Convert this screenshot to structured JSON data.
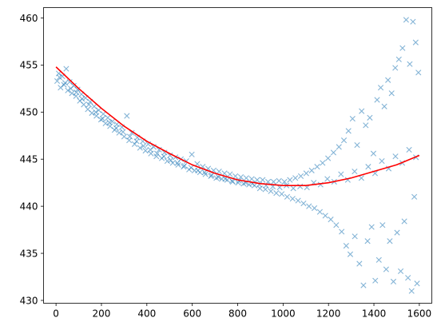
{
  "chart_data": {
    "type": "scatter",
    "title": "",
    "xlabel": "",
    "ylabel": "",
    "xlim": [
      -55,
      1655
    ],
    "ylim": [
      429.7,
      461.1
    ],
    "xticks": [
      0,
      200,
      400,
      600,
      800,
      1000,
      1200,
      1400,
      1600
    ],
    "yticks": [
      430,
      435,
      440,
      445,
      450,
      455,
      460
    ],
    "grid": false,
    "legend": "none",
    "series": [
      {
        "kind": "scatter",
        "marker": "x",
        "color": "#1f77b4",
        "alpha": 0.55,
        "points": [
          [
            5,
            453.3
          ],
          [
            12,
            454.1
          ],
          [
            20,
            452.6
          ],
          [
            28,
            453.8
          ],
          [
            35,
            452.9
          ],
          [
            45,
            454.6
          ],
          [
            52,
            452.3
          ],
          [
            60,
            453.2
          ],
          [
            70,
            452.0
          ],
          [
            78,
            452.8
          ],
          [
            88,
            451.7
          ],
          [
            95,
            452.4
          ],
          [
            105,
            451.2
          ],
          [
            112,
            451.9
          ],
          [
            122,
            450.8
          ],
          [
            130,
            451.5
          ],
          [
            140,
            450.3
          ],
          [
            150,
            451.1
          ],
          [
            158,
            449.9
          ],
          [
            168,
            450.6
          ],
          [
            178,
            449.6
          ],
          [
            188,
            450.2
          ],
          [
            198,
            449.2
          ],
          [
            208,
            449.8
          ],
          [
            218,
            448.8
          ],
          [
            228,
            449.4
          ],
          [
            238,
            448.5
          ],
          [
            248,
            449.0
          ],
          [
            258,
            448.1
          ],
          [
            268,
            448.7
          ],
          [
            278,
            447.8
          ],
          [
            290,
            448.4
          ],
          [
            300,
            447.4
          ],
          [
            312,
            449.6
          ],
          [
            322,
            447.0
          ],
          [
            334,
            447.8
          ],
          [
            346,
            446.6
          ],
          [
            358,
            447.3
          ],
          [
            370,
            446.2
          ],
          [
            382,
            446.9
          ],
          [
            394,
            445.9
          ],
          [
            406,
            446.6
          ],
          [
            418,
            445.6
          ],
          [
            430,
            446.3
          ],
          [
            442,
            445.3
          ],
          [
            454,
            446.0
          ],
          [
            466,
            445.1
          ],
          [
            478,
            445.7
          ],
          [
            490,
            444.8
          ],
          [
            502,
            445.4
          ],
          [
            514,
            444.6
          ],
          [
            526,
            445.2
          ],
          [
            538,
            444.4
          ],
          [
            550,
            445.0
          ],
          [
            562,
            444.2
          ],
          [
            574,
            444.8
          ],
          [
            586,
            443.9
          ],
          [
            598,
            445.5
          ],
          [
            610,
            443.8
          ],
          [
            622,
            444.5
          ],
          [
            634,
            443.6
          ],
          [
            646,
            444.2
          ],
          [
            658,
            443.4
          ],
          [
            670,
            444.0
          ],
          [
            682,
            443.2
          ],
          [
            694,
            443.8
          ],
          [
            706,
            443.0
          ],
          [
            718,
            443.7
          ],
          [
            730,
            442.9
          ],
          [
            742,
            443.5
          ],
          [
            754,
            442.8
          ],
          [
            766,
            443.4
          ],
          [
            778,
            442.6
          ],
          [
            790,
            443.2
          ],
          [
            802,
            442.5
          ],
          [
            814,
            443.1
          ],
          [
            826,
            442.4
          ],
          [
            838,
            443.0
          ],
          [
            850,
            442.3
          ],
          [
            862,
            442.9
          ],
          [
            874,
            442.2
          ],
          [
            886,
            442.8
          ],
          [
            898,
            441.9
          ],
          [
            910,
            442.8
          ],
          [
            922,
            441.8
          ],
          [
            934,
            442.6
          ],
          [
            946,
            441.6
          ],
          [
            958,
            442.6
          ],
          [
            970,
            441.4
          ],
          [
            982,
            442.7
          ],
          [
            994,
            441.3
          ],
          [
            1006,
            442.6
          ],
          [
            1018,
            441.0
          ],
          [
            1030,
            442.8
          ],
          [
            1042,
            440.8
          ],
          [
            1054,
            443.0
          ],
          [
            1066,
            440.6
          ],
          [
            1078,
            443.2
          ],
          [
            1090,
            440.3
          ],
          [
            1102,
            443.5
          ],
          [
            1114,
            440.0
          ],
          [
            1126,
            443.8
          ],
          [
            1138,
            439.8
          ],
          [
            1150,
            444.2
          ],
          [
            1162,
            439.4
          ],
          [
            1174,
            444.6
          ],
          [
            1186,
            439.0
          ],
          [
            1198,
            445.1
          ],
          [
            1210,
            438.6
          ],
          [
            1222,
            445.7
          ],
          [
            1234,
            438.0
          ],
          [
            1246,
            446.3
          ],
          [
            1258,
            437.3
          ],
          [
            1268,
            447.0
          ],
          [
            1278,
            435.8
          ],
          [
            1288,
            448.0
          ],
          [
            1296,
            434.9
          ],
          [
            1306,
            449.3
          ],
          [
            1316,
            436.8
          ],
          [
            1326,
            446.5
          ],
          [
            1336,
            433.9
          ],
          [
            1346,
            450.1
          ],
          [
            1354,
            431.6
          ],
          [
            1364,
            448.6
          ],
          [
            1372,
            436.3
          ],
          [
            1382,
            449.4
          ],
          [
            1390,
            437.8
          ],
          [
            1398,
            445.6
          ],
          [
            1406,
            432.1
          ],
          [
            1414,
            451.3
          ],
          [
            1422,
            434.3
          ],
          [
            1430,
            452.6
          ],
          [
            1438,
            438.0
          ],
          [
            1446,
            450.6
          ],
          [
            1454,
            433.3
          ],
          [
            1462,
            453.4
          ],
          [
            1470,
            436.3
          ],
          [
            1478,
            452.0
          ],
          [
            1486,
            432.0
          ],
          [
            1494,
            454.7
          ],
          [
            1502,
            437.2
          ],
          [
            1510,
            455.6
          ],
          [
            1518,
            433.1
          ],
          [
            1526,
            456.8
          ],
          [
            1534,
            438.4
          ],
          [
            1542,
            459.8
          ],
          [
            1550,
            432.4
          ],
          [
            1558,
            455.1
          ],
          [
            1566,
            431.0
          ],
          [
            1572,
            459.6
          ],
          [
            1578,
            441.0
          ],
          [
            1584,
            457.4
          ],
          [
            1590,
            431.8
          ],
          [
            1596,
            454.2
          ],
          [
            15,
            453.7
          ],
          [
            40,
            453.1
          ],
          [
            65,
            452.5
          ],
          [
            90,
            452.1
          ],
          [
            115,
            451.4
          ],
          [
            145,
            450.8
          ],
          [
            175,
            450.0
          ],
          [
            205,
            449.3
          ],
          [
            235,
            448.9
          ],
          [
            265,
            448.3
          ],
          [
            295,
            447.9
          ],
          [
            325,
            447.4
          ],
          [
            355,
            446.9
          ],
          [
            385,
            446.4
          ],
          [
            415,
            446.0
          ],
          [
            445,
            445.6
          ],
          [
            475,
            445.3
          ],
          [
            505,
            444.9
          ],
          [
            535,
            444.6
          ],
          [
            565,
            444.3
          ],
          [
            595,
            444.1
          ],
          [
            625,
            443.8
          ],
          [
            655,
            443.6
          ],
          [
            685,
            443.3
          ],
          [
            715,
            443.1
          ],
          [
            745,
            442.9
          ],
          [
            775,
            442.7
          ],
          [
            805,
            442.7
          ],
          [
            835,
            442.5
          ],
          [
            865,
            442.4
          ],
          [
            895,
            442.3
          ],
          [
            925,
            442.2
          ],
          [
            955,
            442.1
          ],
          [
            985,
            442.0
          ],
          [
            1015,
            442.2
          ],
          [
            1045,
            441.9
          ],
          [
            1075,
            442.1
          ],
          [
            1105,
            442.0
          ],
          [
            1135,
            442.5
          ],
          [
            1165,
            442.3
          ],
          [
            1195,
            442.9
          ],
          [
            1225,
            442.6
          ],
          [
            1255,
            443.4
          ],
          [
            1285,
            442.8
          ],
          [
            1315,
            443.7
          ],
          [
            1345,
            443.0
          ],
          [
            1375,
            444.2
          ],
          [
            1405,
            443.5
          ],
          [
            1435,
            444.8
          ],
          [
            1465,
            444.0
          ],
          [
            1495,
            445.3
          ],
          [
            1525,
            444.6
          ],
          [
            1555,
            446.0
          ],
          [
            1585,
            445.2
          ]
        ]
      },
      {
        "kind": "line",
        "color": "#ff0000",
        "x": [
          0,
          100,
          200,
          300,
          400,
          500,
          600,
          700,
          800,
          900,
          1000,
          1100,
          1200,
          1300,
          1400,
          1500,
          1600
        ],
        "y": [
          454.8,
          452.5,
          450.4,
          448.5,
          446.9,
          445.6,
          444.4,
          443.5,
          442.8,
          442.4,
          442.2,
          442.2,
          442.5,
          443.0,
          443.7,
          444.4,
          445.4
        ]
      }
    ]
  }
}
